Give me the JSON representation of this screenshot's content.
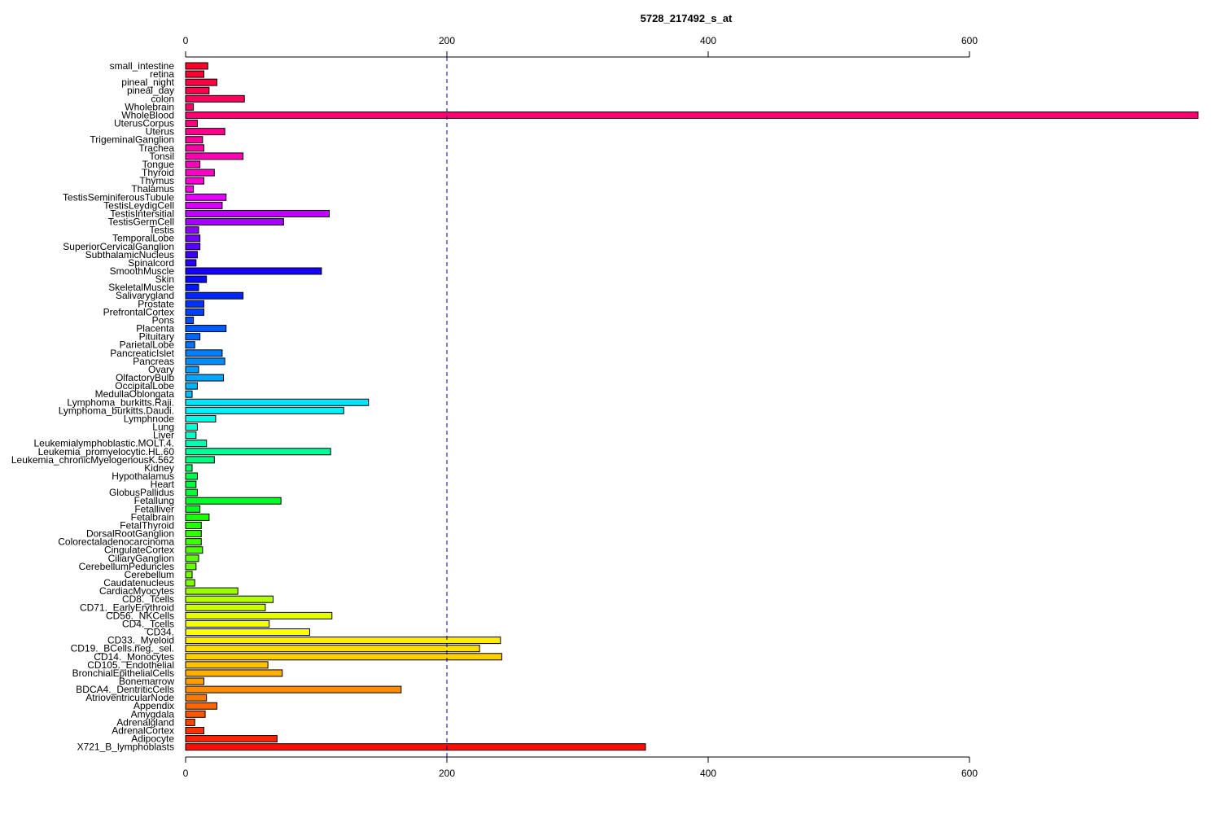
{
  "chart_data": {
    "type": "bar",
    "orientation": "horizontal",
    "title": "5728_217492_s_at",
    "xlabel": "",
    "ylabel": "",
    "xlim": [
      0,
      775
    ],
    "xticks": [
      0,
      200,
      400,
      600
    ],
    "axis_ticks_top_and_bottom": true,
    "reference_line": 200,
    "grid": false,
    "legend": "none",
    "categories": [
      "small_intestine",
      "retina",
      "pineal_night",
      "pineal_day",
      "colon",
      "Wholebrain",
      "WholeBlood",
      "UterusCorpus",
      "Uterus",
      "TrigeminalGanglion",
      "Trachea",
      "Tonsil",
      "Tongue",
      "Thyroid",
      "Thymus",
      "Thalamus",
      "TestisSeminiferousTubule",
      "TestisLeydigCell",
      "TestisIntersitial",
      "TestisGermCell",
      "Testis",
      "TemporalLobe",
      "SuperiorCervicalGanglion",
      "SubthalamicNucleus",
      "Spinalcord",
      "SmoothMuscle",
      "Skin",
      "SkeletalMuscle",
      "Salivarygland",
      "Prostate",
      "PrefrontalCortex",
      "Pons",
      "Placenta",
      "Pituitary",
      "ParietalLobe",
      "PancreaticIslet",
      "Pancreas",
      "Ovary",
      "OlfactoryBulb",
      "OccipitalLobe",
      "MedullaOblongata",
      "Lymphoma_burkitts.Raji.",
      "Lymphoma_burkitts.Daudi.",
      "Lymphnode",
      "Lung",
      "Liver",
      "Leukemialymphoblastic.MOLT.4.",
      "Leukemia_promyelocytic.HL.60",
      "Leukemia_chronicMyelogenousK.562",
      "Kidney",
      "Hypothalamus",
      "Heart",
      "GlobusPallidus",
      "Fetallung",
      "Fetalliver",
      "Fetalbrain",
      "FetalThyroid",
      "DorsalRootGanglion",
      "Colorectaladenocarcinoma",
      "CingulateCortex",
      "CiliaryGanglion",
      "CerebellumPeduncles",
      "Cerebellum",
      "Caudatenucleus",
      "CardiacMyocytes",
      "CD8._Tcells",
      "CD71._EarlyErythroid",
      "CD56._NKCells",
      "CD4._Tcells",
      "CD34.",
      "CD33._Myeloid",
      "CD19._BCells.neg._sel.",
      "CD14._Monocytes",
      "CD105._Endothelial",
      "BronchialEpithelialCells",
      "Bonemarrow",
      "BDCA4._DentriticCells",
      "AtrioventricularNode",
      "Appendix",
      "Amygdala",
      "Adrenalgland",
      "AdrenalCortex",
      "Adipocyte",
      "X721_B_lymphoblasts"
    ],
    "values": [
      17,
      14,
      24,
      18,
      45,
      6,
      775,
      9,
      30,
      13,
      14,
      44,
      11,
      22,
      14,
      6,
      31,
      28,
      110,
      75,
      10,
      11,
      11,
      9,
      8,
      104,
      16,
      10,
      44,
      14,
      14,
      6,
      31,
      11,
      7,
      28,
      30,
      10,
      29,
      9,
      5,
      140,
      121,
      23,
      9,
      8,
      16,
      111,
      22,
      5,
      9,
      8,
      9,
      73,
      11,
      18,
      12,
      12,
      12,
      13,
      10,
      8,
      5,
      7,
      40,
      67,
      61,
      112,
      64,
      95,
      241,
      225,
      242,
      63,
      74,
      14,
      165,
      16,
      24,
      15,
      7,
      14,
      70,
      352
    ],
    "bar_colors": [
      "#FF0026",
      "#FF0033",
      "#FF0040",
      "#FF004D",
      "#FF005A",
      "#FF0066",
      "#FF0073",
      "#FF0080",
      "#FF008D",
      "#FF009A",
      "#FF00A6",
      "#FF00B3",
      "#FF00C0",
      "#FF00CD",
      "#FF00D9",
      "#FF00E6",
      "#E600FF",
      "#D900FF",
      "#C000FF",
      "#A600FF",
      "#8C00FF",
      "#7300FF",
      "#5A00FF",
      "#4000FF",
      "#2600FF",
      "#1400FF",
      "#0A0AFF",
      "#0016FF",
      "#0026FF",
      "#0033FF",
      "#0040FF",
      "#004DFF",
      "#005AFF",
      "#0066FF",
      "#0073FF",
      "#0080FF",
      "#008DFF",
      "#009AFF",
      "#00A6FF",
      "#00B3FF",
      "#00C0FF",
      "#00E6FF",
      "#00F2FF",
      "#00FFE6",
      "#00FFD9",
      "#00FFCC",
      "#00FFB3",
      "#00FF99",
      "#00FF80",
      "#00FF66",
      "#00FF4D",
      "#00FF40",
      "#00FF33",
      "#00FF26",
      "#00FF1A",
      "#1AFF00",
      "#26FF00",
      "#33FF00",
      "#40FF00",
      "#4DFF00",
      "#5AFF00",
      "#66FF00",
      "#73FF00",
      "#80FF00",
      "#99FF00",
      "#B3FF00",
      "#CCFF00",
      "#E6FF00",
      "#F2FF00",
      "#FFFF00",
      "#FFEE00",
      "#FFE000",
      "#FFD000",
      "#FFC000",
      "#FFB000",
      "#FFA000",
      "#FF8C00",
      "#FF7800",
      "#FF6600",
      "#FF5500",
      "#FF4400",
      "#FF3300",
      "#FF2200",
      "#FF0D00"
    ],
    "reference_line_color": "#000080"
  }
}
